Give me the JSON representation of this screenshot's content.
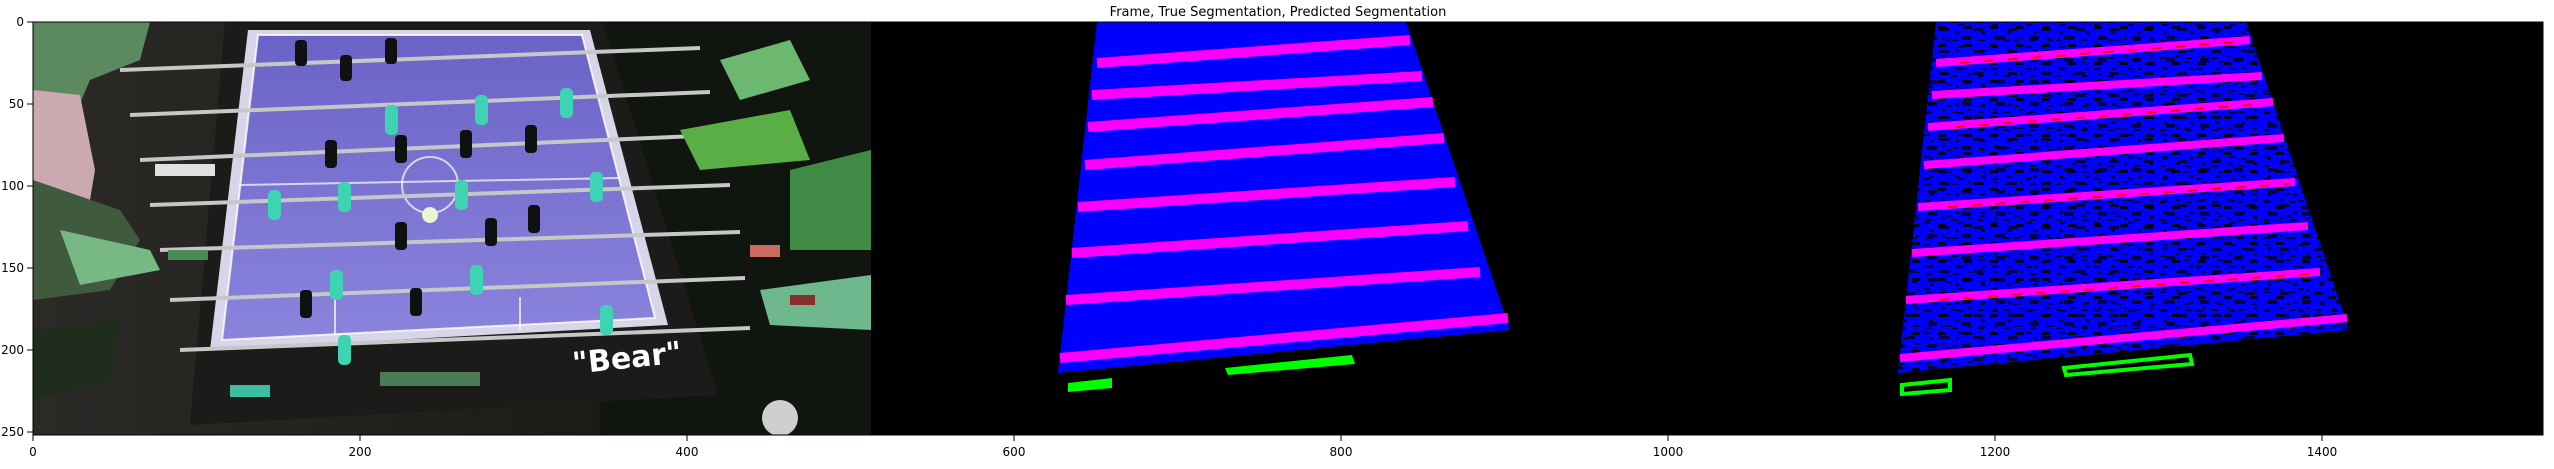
{
  "title": "Frame, True Segmentation, Predicted Segmentation",
  "x_ticks": [
    "0",
    "200",
    "400",
    "600",
    "800",
    "1000",
    "1200",
    "1400"
  ],
  "y_ticks": [
    "0",
    "50",
    "100",
    "150",
    "200",
    "250"
  ],
  "panels": [
    "frame",
    "true-segmentation",
    "predicted-segmentation"
  ],
  "frame_text": "\"Bear\"",
  "colors": {
    "background": "#000000",
    "table_mask": "#0000ff",
    "rod_mask": "#ff00ff",
    "predicted_error": "#ff0000",
    "player_mask": "#00ff00"
  }
}
